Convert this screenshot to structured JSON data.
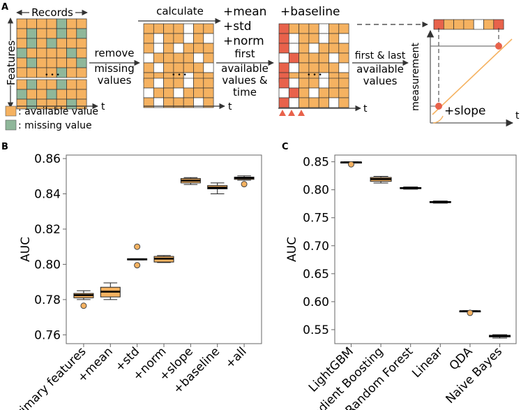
{
  "panel_a": {
    "label": "A",
    "records_label": "Records",
    "features_label": "Features",
    "ellipsis": "• • •",
    "t_label": "t",
    "legend": {
      "available": ": available value",
      "missing": ": missing value"
    },
    "step_remove": [
      "remove",
      "missing",
      "values"
    ],
    "step_calculate": "calculate",
    "feature_names": [
      "+mean",
      "+std",
      "+norm"
    ],
    "step_first": [
      "first",
      "available",
      "values &",
      "time"
    ],
    "baseline_label": "+baseline",
    "step_first_last": [
      "first & last",
      "available",
      "values"
    ],
    "measurement_label": "measurement",
    "slope_label": "+slope",
    "colors": {
      "available": "#f5b261",
      "missing": "#8fb79a",
      "highlight": "#e8624b",
      "empty": "#ffffff",
      "grid_line": "#333333"
    }
  },
  "chart_data": [
    {
      "panel": "B",
      "type": "box",
      "title": "",
      "xlabel": "",
      "ylabel": "AUC",
      "ylim": [
        0.755,
        0.862
      ],
      "yticks": [
        "0.76",
        "0.78",
        "0.80",
        "0.82",
        "0.84",
        "0.86"
      ],
      "categories": [
        "primary features",
        "+mean",
        "+std",
        "+norm",
        "+slope",
        "+baseline",
        "+all"
      ],
      "boxes": [
        {
          "whisker_low": 0.78,
          "q1": 0.781,
          "median": 0.7825,
          "q3": 0.7835,
          "whisker_high": 0.785,
          "outliers": [
            0.7765
          ]
        },
        {
          "whisker_low": 0.78,
          "q1": 0.7815,
          "median": 0.7845,
          "q3": 0.787,
          "whisker_high": 0.7895,
          "outliers": []
        },
        {
          "whisker_low": 0.8025,
          "q1": 0.8025,
          "median": 0.8028,
          "q3": 0.8032,
          "whisker_high": 0.8032,
          "outliers": [
            0.81,
            0.7995
          ]
        },
        {
          "whisker_low": 0.801,
          "q1": 0.8013,
          "median": 0.8032,
          "q3": 0.8045,
          "whisker_high": 0.805,
          "outliers": []
        },
        {
          "whisker_low": 0.8453,
          "q1": 0.8462,
          "median": 0.8475,
          "q3": 0.8487,
          "whisker_high": 0.8492,
          "outliers": []
        },
        {
          "whisker_low": 0.84,
          "q1": 0.8428,
          "median": 0.8435,
          "q3": 0.8447,
          "whisker_high": 0.8462,
          "outliers": []
        },
        {
          "whisker_low": 0.8478,
          "q1": 0.8482,
          "median": 0.849,
          "q3": 0.8495,
          "whisker_high": 0.8502,
          "outliers": [
            0.8455
          ]
        }
      ],
      "box_color": "#f5b261"
    },
    {
      "panel": "C",
      "type": "box",
      "title": "",
      "xlabel": "",
      "ylabel": "AUC",
      "ylim": [
        0.525,
        0.862
      ],
      "yticks": [
        "0.55",
        "0.60",
        "0.65",
        "0.70",
        "0.75",
        "0.80",
        "0.85"
      ],
      "categories": [
        "LightGBM",
        "Gradient Boosting",
        "Random Forest",
        "Linear",
        "QDA",
        "Naive Bayes"
      ],
      "boxes": [
        {
          "whisker_low": 0.848,
          "q1": 0.8485,
          "median": 0.849,
          "q3": 0.8495,
          "whisker_high": 0.85,
          "outliers": [
            0.8455
          ]
        },
        {
          "whisker_low": 0.812,
          "q1": 0.815,
          "median": 0.819,
          "q3": 0.822,
          "whisker_high": 0.824,
          "outliers": []
        },
        {
          "whisker_low": 0.801,
          "q1": 0.802,
          "median": 0.803,
          "q3": 0.804,
          "whisker_high": 0.805,
          "outliers": []
        },
        {
          "whisker_low": 0.776,
          "q1": 0.777,
          "median": 0.778,
          "q3": 0.779,
          "whisker_high": 0.78,
          "outliers": []
        },
        {
          "whisker_low": 0.582,
          "q1": 0.5825,
          "median": 0.583,
          "q3": 0.5835,
          "whisker_high": 0.584,
          "outliers": [
            0.58
          ]
        },
        {
          "whisker_low": 0.535,
          "q1": 0.537,
          "median": 0.5385,
          "q3": 0.54,
          "whisker_high": 0.541,
          "outliers": []
        }
      ],
      "box_color": "#f5b261"
    }
  ],
  "panel_labels": {
    "b": "B",
    "c": "C"
  }
}
